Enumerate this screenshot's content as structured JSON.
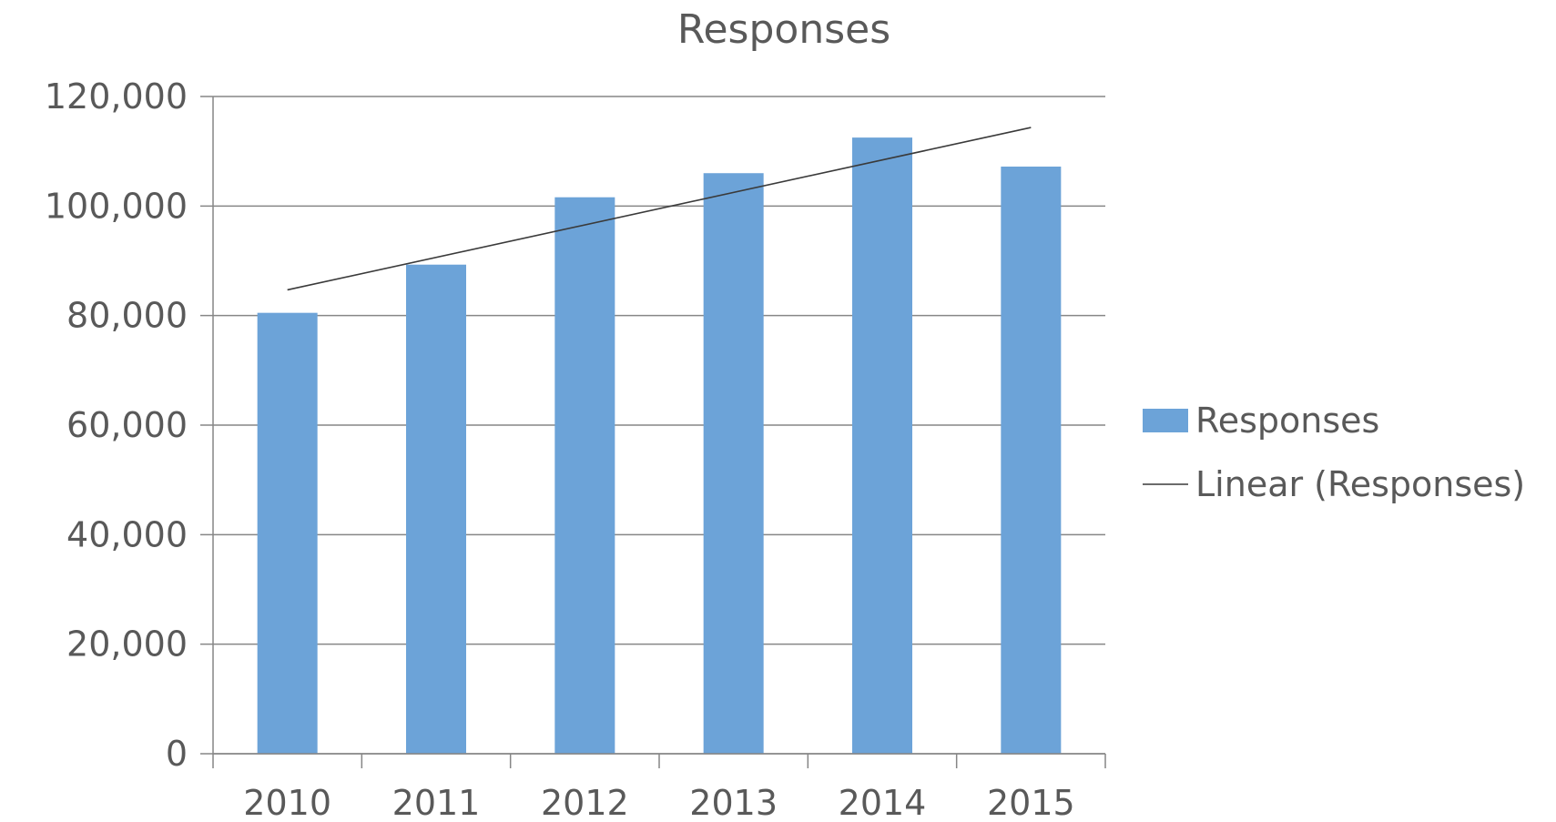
{
  "chart_data": {
    "type": "bar",
    "title": "Responses",
    "categories": [
      "2010",
      "2011",
      "2012",
      "2013",
      "2014",
      "2015"
    ],
    "series": [
      {
        "name": "Responses",
        "values": [
          80500,
          89300,
          101600,
          106000,
          112500,
          107200
        ],
        "color": "#6ca3d8"
      }
    ],
    "trendline": {
      "name": "Linear (Responses)",
      "type": "linear",
      "color": "#3a3a3a"
    },
    "yticks": [
      "0",
      "20,000",
      "40,000",
      "60,000",
      "80,000",
      "100,000",
      "120,000"
    ],
    "ytick_values": [
      0,
      20000,
      40000,
      60000,
      80000,
      100000,
      120000
    ],
    "ylim": [
      0,
      120000
    ],
    "grid": true,
    "legend_position": "right",
    "xlabel": "",
    "ylabel": ""
  }
}
